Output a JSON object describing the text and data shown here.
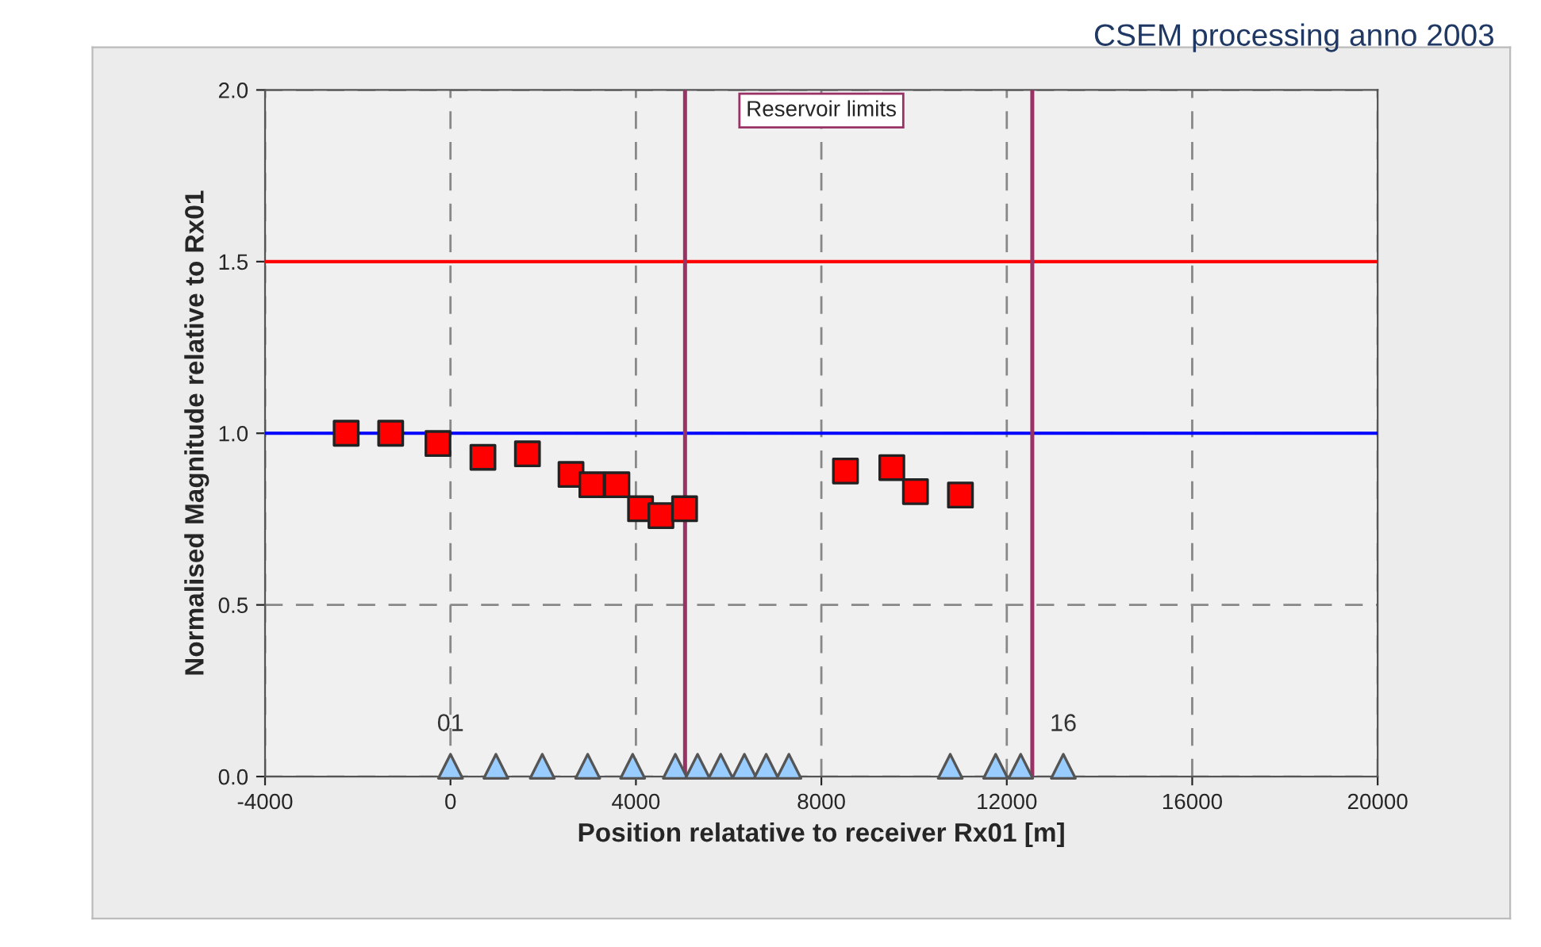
{
  "chart_data": {
    "type": "scatter",
    "xlabel": "Position relatative to receiver Rx01 [m]",
    "ylabel": "Normalised Magnitude relative to Rx01",
    "series": [
      {
        "marker": "square",
        "color": "#ff0000",
        "x": [
          -2250,
          -1290,
          -270,
          700,
          1660,
          2600,
          3050,
          3590,
          4100,
          4540,
          5050,
          8520,
          9520,
          10030,
          11000
        ],
        "values": [
          1.0,
          1.0,
          0.97,
          0.93,
          0.94,
          0.88,
          0.85,
          0.85,
          0.78,
          0.76,
          0.78,
          0.89,
          0.9,
          0.83,
          0.82
        ]
      },
      {
        "marker": "triangle",
        "color": "#99ccff",
        "x": [
          0,
          980,
          1980,
          2960,
          3930,
          4850,
          5330,
          5830,
          6340,
          6810,
          7300,
          10780,
          11760,
          12300,
          13220
        ],
        "values": [
          0.03,
          0.03,
          0.03,
          0.03,
          0.03,
          0.03,
          0.03,
          0.03,
          0.03,
          0.03,
          0.03,
          0.03,
          0.03,
          0.03,
          0.03
        ]
      }
    ],
    "xlim": [
      -4000,
      20000
    ],
    "xticks": [
      -4000,
      0,
      4000,
      8000,
      12000,
      16000,
      20000
    ],
    "ylim": [
      0,
      2
    ],
    "yticks": [
      {
        "value": 0,
        "label": "0.0"
      },
      {
        "value": 0.5,
        "label": "0.5"
      },
      {
        "value": 1,
        "label": "1.0"
      },
      {
        "value": 1.5,
        "label": "1.5"
      },
      {
        "value": 2,
        "label": "2.0"
      }
    ],
    "grid": true,
    "ref_lines": [
      {
        "axis": "y",
        "value": 1.5,
        "color": "#ff0000"
      },
      {
        "axis": "y",
        "value": 1.0,
        "color": "#0000ff"
      },
      {
        "axis": "x",
        "value": 5060,
        "color": "#993366"
      },
      {
        "axis": "x",
        "value": 12550,
        "color": "#993366"
      }
    ],
    "annotations": [
      {
        "text": "01",
        "x": 0,
        "y": 0.03
      },
      {
        "text": "16",
        "x": 13220,
        "y": 0.03
      },
      "Reservoir limits",
      "CSEM processing anno 2003"
    ]
  }
}
